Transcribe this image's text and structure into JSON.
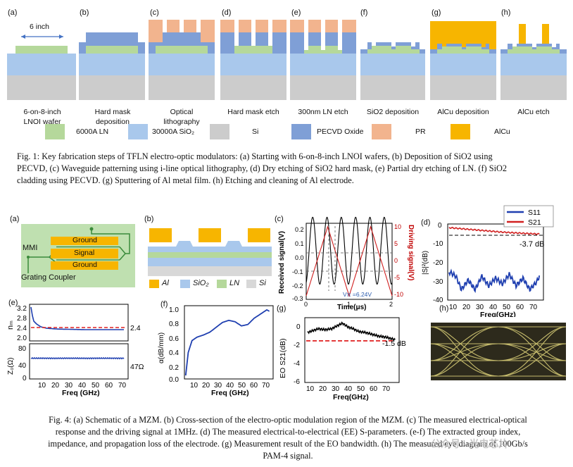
{
  "fig1": {
    "panels": [
      {
        "letter": "(a)",
        "label_lines": [
          "6-on-8-inch",
          "LNOI wafer"
        ]
      },
      {
        "letter": "(b)",
        "label_lines": [
          "Hard mask",
          "deposition"
        ]
      },
      {
        "letter": "(c)",
        "label_lines": [
          "Optical",
          "lithography"
        ]
      },
      {
        "letter": "(d)",
        "label_lines": [
          "Hard mask etch"
        ]
      },
      {
        "letter": "(e)",
        "label_lines": [
          "300nm LN etch"
        ]
      },
      {
        "letter": "(f)",
        "label_lines": [
          "SiO2 deposition"
        ]
      },
      {
        "letter": "(g)",
        "label_lines": [
          "AlCu deposition"
        ]
      },
      {
        "letter": "(h)",
        "label_lines": [
          "AlCu etch"
        ]
      }
    ],
    "wafer_size": "6 inch",
    "legend": [
      {
        "text": "6000A LN",
        "color": "#b5d89b"
      },
      {
        "text": "30000A SiO₂",
        "color": "#a9c8ec"
      },
      {
        "text": "Si",
        "color": "#cccccc"
      },
      {
        "text": "PECVD Oxide",
        "color": "#7f9fd6"
      },
      {
        "text": "PR",
        "color": "#f2b48e"
      },
      {
        "text": "AlCu",
        "color": "#f7b500"
      }
    ],
    "caption_lines": [
      "Fig. 1: Key fabrication steps of TFLN electro-optic modulators: (a) Starting with 6-on-8-inch LNOI wafers, (b) Deposition of SiO2 using",
      "PECVD, (c) Waveguide patterning using i-line optical lithography, (d) Dry etching of SiO2 hard mask, (e) Partial dry etching of LN. (f) SiO2",
      "cladding using PECVD. (g) Sputtering of Al metal film. (h) Etching and cleaning of Al electrode."
    ]
  },
  "fig4": {
    "a": {
      "letter": "(a)",
      "ground_top": "Ground",
      "signal": "Signal",
      "ground_bottom": "Ground",
      "mmi": "MMI",
      "grating": "Grating Coupler"
    },
    "b": {
      "letter": "(b)",
      "legend": [
        "Al",
        "SiO₂",
        "LN",
        "Si"
      ]
    },
    "c": {
      "letter": "(c)",
      "ylabel_left": "Received signal(V)",
      "ylabel_right": "Driving signal(V)",
      "xlabel": "Time(μs)",
      "vpi": "Vπ =6.24V",
      "left_ticks": [
        "0.2",
        "0.1",
        "0.0",
        "-0.1",
        "-0.2",
        "-0.3"
      ],
      "right_ticks": [
        "10",
        "5",
        "0",
        "-5",
        "-10"
      ],
      "x_ticks": [
        "0",
        "1",
        "2"
      ]
    },
    "d": {
      "letter": "(d)",
      "legend_s11": "S11",
      "legend_s21": "S21",
      "annotation": "-3.7 dB",
      "ylabel": "|S|²(dB)",
      "xlabel": "Freq(GHz)",
      "y_ticks": [
        "0",
        "-10",
        "-20",
        "-30",
        "-40"
      ],
      "x_ticks": [
        "10",
        "20",
        "30",
        "40",
        "50",
        "60",
        "70"
      ]
    },
    "e": {
      "letter": "(e)",
      "ylabel_top": "nₘ",
      "ylabel_bottom": "Z₀(Ω)",
      "annotation_n": "2.4",
      "annotation_z": "47Ω",
      "n_ticks": [
        "3.2",
        "2.8",
        "2.4",
        "2.0"
      ],
      "z_ticks": [
        "80",
        "40",
        "0"
      ],
      "x_ticks": [
        "10",
        "20",
        "30",
        "40",
        "50",
        "60",
        "70"
      ],
      "xlabel": "Freq (GHz)"
    },
    "f": {
      "letter": "(f)",
      "ylabel": "α(dB/mm)",
      "xlabel": "Freq (GHz)",
      "y_ticks": [
        "1.0",
        "0.8",
        "0.6",
        "0.4",
        "0.2",
        "0.0"
      ],
      "x_ticks": [
        "10",
        "20",
        "30",
        "40",
        "50",
        "60",
        "70"
      ]
    },
    "g": {
      "letter": "(g)",
      "ylabel": "EO S21(dB)",
      "xlabel": "Freq(GHz)",
      "annotation": "-1.5 dB",
      "y_ticks": [
        "0",
        "-2",
        "-4",
        "-6"
      ],
      "x_ticks": [
        "10",
        "20",
        "30",
        "40",
        "50",
        "60",
        "70"
      ]
    },
    "h": {
      "letter": "(h)"
    },
    "caption_lines": [
      "Fig. 4: (a) Schematic of a MZM. (b) Cross-section of the electro-optic modulation region of the MZM. (c) The measured electrical-optical",
      "response and the driving signal at 1MHz. (d) The measured electrical-to-electrical (EE) S-parameters. (e-f) The extracted group index,",
      "impedance, and propagation loss of the electrode. (g) Measurement result of the EO bandwidth. (h) The measured eye diagram of 100Gb/s",
      "PAM-4 signal."
    ],
    "watermark": "公众号 · 光电芯片"
  },
  "chart_data": [
    {
      "type": "line",
      "title": "(c)",
      "xlabel": "Time(μs)",
      "ylabel": "Received signal(V)",
      "xlim": [
        0,
        2
      ],
      "ylim": [
        -0.3,
        0.2
      ],
      "series": [
        {
          "name": "Received",
          "note": "sinusoid ~ amplitude 0.22V, ~6 periods over 2μs"
        },
        {
          "name": "Driving",
          "note": "triangle wave between -10 and 10 V"
        }
      ]
    },
    {
      "type": "line",
      "title": "(d)",
      "xlabel": "Freq(GHz)",
      "ylabel": "|S|²(dB)",
      "xlim": [
        0,
        70
      ],
      "ylim": [
        -40,
        0
      ],
      "series": [
        {
          "name": "S21",
          "x": [
            2,
            10,
            20,
            30,
            40,
            50,
            60,
            67
          ],
          "values": [
            -0.5,
            -1,
            -1.6,
            -2.2,
            -2.8,
            -3.2,
            -3.6,
            -3.8
          ]
        },
        {
          "name": "S11",
          "x": [
            2,
            6,
            10,
            15,
            20,
            25,
            30,
            35,
            40,
            45,
            50,
            55,
            60,
            65,
            67
          ],
          "values": [
            -24,
            -26,
            -33,
            -28,
            -33,
            -26,
            -31,
            -27,
            -30,
            -25,
            -31,
            -27,
            -33,
            -29,
            -26
          ]
        }
      ]
    },
    {
      "type": "line",
      "title": "(e)",
      "xlabel": "Freq (GHz)",
      "xlim": [
        0,
        70
      ],
      "series": [
        {
          "name": "n_m",
          "x": [
            1,
            2,
            3,
            5,
            8,
            12,
            20,
            40,
            67
          ],
          "values": [
            3.2,
            2.9,
            2.7,
            2.6,
            2.5,
            2.45,
            2.42,
            2.4,
            2.4
          ]
        },
        {
          "name": "Z0",
          "x": [
            1,
            10,
            30,
            50,
            67
          ],
          "values": [
            47,
            47,
            47,
            47,
            47
          ]
        }
      ]
    },
    {
      "type": "line",
      "title": "(f)",
      "xlabel": "Freq (GHz)",
      "ylabel": "α(dB/mm)",
      "xlim": [
        0,
        70
      ],
      "ylim": [
        0,
        1.0
      ],
      "series": [
        {
          "name": "alpha",
          "x": [
            1,
            3,
            6,
            10,
            15,
            20,
            25,
            30,
            35,
            40,
            45,
            50,
            55,
            60,
            65,
            67
          ],
          "values": [
            0.05,
            0.38,
            0.55,
            0.6,
            0.63,
            0.67,
            0.74,
            0.81,
            0.84,
            0.82,
            0.76,
            0.78,
            0.87,
            0.93,
            0.99,
            0.97
          ]
        }
      ]
    },
    {
      "type": "line",
      "title": "(g)",
      "xlabel": "Freq(GHz)",
      "ylabel": "EO S21(dB)",
      "xlim": [
        0,
        70
      ],
      "ylim": [
        -6,
        1
      ],
      "series": [
        {
          "name": "EO S21",
          "x": [
            2,
            6,
            10,
            15,
            20,
            25,
            28,
            32,
            36,
            40,
            45,
            50,
            55,
            60,
            65,
            67
          ],
          "values": [
            -0.6,
            -0.4,
            -0.2,
            -0.3,
            -0.2,
            0.2,
            0.4,
            0.0,
            -0.2,
            -0.5,
            -0.6,
            -0.8,
            -1.0,
            -1.1,
            -1.3,
            -1.4
          ]
        },
        {
          "name": "-1.5 dB reference",
          "x": [
            0,
            70
          ],
          "values": [
            -1.5,
            -1.5
          ]
        }
      ]
    }
  ]
}
